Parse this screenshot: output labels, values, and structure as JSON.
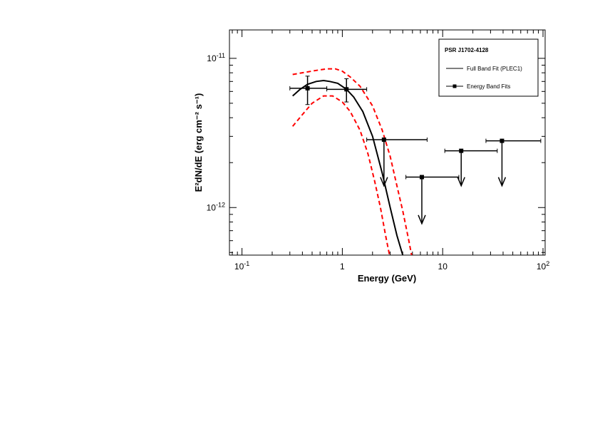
{
  "chart_data": {
    "type": "scatter",
    "title": "",
    "xlabel": "Energy (GeV)",
    "ylabel": "E²dN/dE (erg cm⁻² s⁻¹)",
    "xscale": "log",
    "yscale": "log",
    "xlim": [
      0.075,
      105
    ],
    "ylim": [
      4.8e-13,
      1.55e-11
    ],
    "x_ticks": [
      {
        "value": 0.1,
        "mantissa": "10",
        "exp": "-1"
      },
      {
        "value": 1,
        "mantissa": "1",
        "exp": ""
      },
      {
        "value": 10,
        "mantissa": "10",
        "exp": ""
      },
      {
        "value": 100,
        "mantissa": "10",
        "exp": "2"
      }
    ],
    "y_ticks": [
      {
        "value": 1e-12,
        "mantissa": "10",
        "exp": "-12"
      },
      {
        "value": 1e-11,
        "mantissa": "10",
        "exp": "-11"
      }
    ],
    "grid": false,
    "legend": {
      "position": "top-right",
      "title": "PSR J1702-4128",
      "entries": [
        "Full Band Fit (PLEC1)",
        "Energy Band Fits"
      ]
    },
    "series": [
      {
        "name": "Full Band Fit (PLEC1)",
        "kind": "line",
        "color": "#000000",
        "x": [
          0.32,
          0.38,
          0.45,
          0.55,
          0.65,
          0.75,
          0.9,
          1.1,
          1.3,
          1.6,
          2.0,
          2.5,
          3.0,
          3.5,
          4.0,
          4.3
        ],
        "y": [
          5.6e-12,
          6.2e-12,
          6.7e-12,
          7e-12,
          7.1e-12,
          7e-12,
          6.8e-12,
          6.2e-12,
          5.5e-12,
          4.4e-12,
          3e-12,
          1.7e-12,
          1e-12,
          6.5e-13,
          4.8e-13,
          4e-13
        ]
      },
      {
        "name": "Fit upper bound",
        "kind": "dashed",
        "color": "#ff0000",
        "x": [
          0.32,
          0.4,
          0.55,
          0.7,
          0.85,
          1.0,
          1.2,
          1.5,
          2.0,
          2.5,
          3.0,
          3.5,
          4.0,
          4.6,
          4.9
        ],
        "y": [
          7.8e-12,
          8e-12,
          8.3e-12,
          8.5e-12,
          8.5e-12,
          8.2e-12,
          7.5e-12,
          6.5e-12,
          4.8e-12,
          3.3e-12,
          2.2e-12,
          1.4e-12,
          9.5e-13,
          6e-13,
          4.8e-13
        ]
      },
      {
        "name": "Fit lower bound",
        "kind": "dashed",
        "color": "#ff0000",
        "x": [
          0.32,
          0.4,
          0.5,
          0.65,
          0.8,
          1.0,
          1.2,
          1.5,
          1.8,
          2.1,
          2.4,
          2.7,
          2.95
        ],
        "y": [
          3.5e-12,
          4.2e-12,
          5e-12,
          5.6e-12,
          5.6e-12,
          5.1e-12,
          4.4e-12,
          3.3e-12,
          2.3e-12,
          1.5e-12,
          1e-12,
          6.5e-13,
          4.8e-13
        ]
      },
      {
        "name": "Energy Band Fits",
        "kind": "points",
        "color": "#000000",
        "points": [
          {
            "x": 0.45,
            "xlo": 0.3,
            "xhi": 0.7,
            "y": 6.3e-12,
            "ylo": 4.9e-12,
            "yhi": 7.6e-12
          },
          {
            "x": 1.1,
            "xlo": 0.7,
            "xhi": 1.75,
            "y": 6.2e-12,
            "ylo": 5.1e-12,
            "yhi": 7.3e-12
          }
        ],
        "upper_limits": [
          {
            "x": 2.6,
            "xlo": 1.75,
            "xhi": 7.0,
            "y": 2.85e-12,
            "arrow_to": 1.4e-12
          },
          {
            "x": 6.2,
            "xlo": 4.3,
            "xhi": 14.5,
            "y": 1.6e-12,
            "arrow_to": 7.8e-13
          },
          {
            "x": 15.3,
            "xlo": 10.5,
            "xhi": 35.0,
            "y": 2.4e-12,
            "arrow_to": 1.4e-12
          },
          {
            "x": 39.0,
            "xlo": 27.0,
            "xhi": 95.0,
            "y": 2.8e-12,
            "arrow_to": 1.4e-12
          }
        ]
      }
    ]
  }
}
